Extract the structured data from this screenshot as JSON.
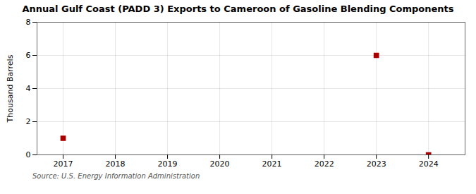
{
  "chart_data": {
    "type": "scatter",
    "title": "Annual Gulf Coast (PADD 3) Exports to Cameroon of Gasoline Blending Components",
    "ylabel": "Thousand Barrels",
    "source": "Source: U.S. Energy Information Administration",
    "x": [
      2017,
      2023,
      2024
    ],
    "values": [
      1,
      6,
      0
    ],
    "color": "#aa0000",
    "marker": "square",
    "xlim": [
      2016.5,
      2024.7
    ],
    "ylim": [
      0,
      8
    ],
    "xticks": [
      2017,
      2018,
      2019,
      2020,
      2021,
      2022,
      2023,
      2024
    ],
    "yticks": [
      0,
      2,
      4,
      6,
      8
    ],
    "grid": true
  }
}
